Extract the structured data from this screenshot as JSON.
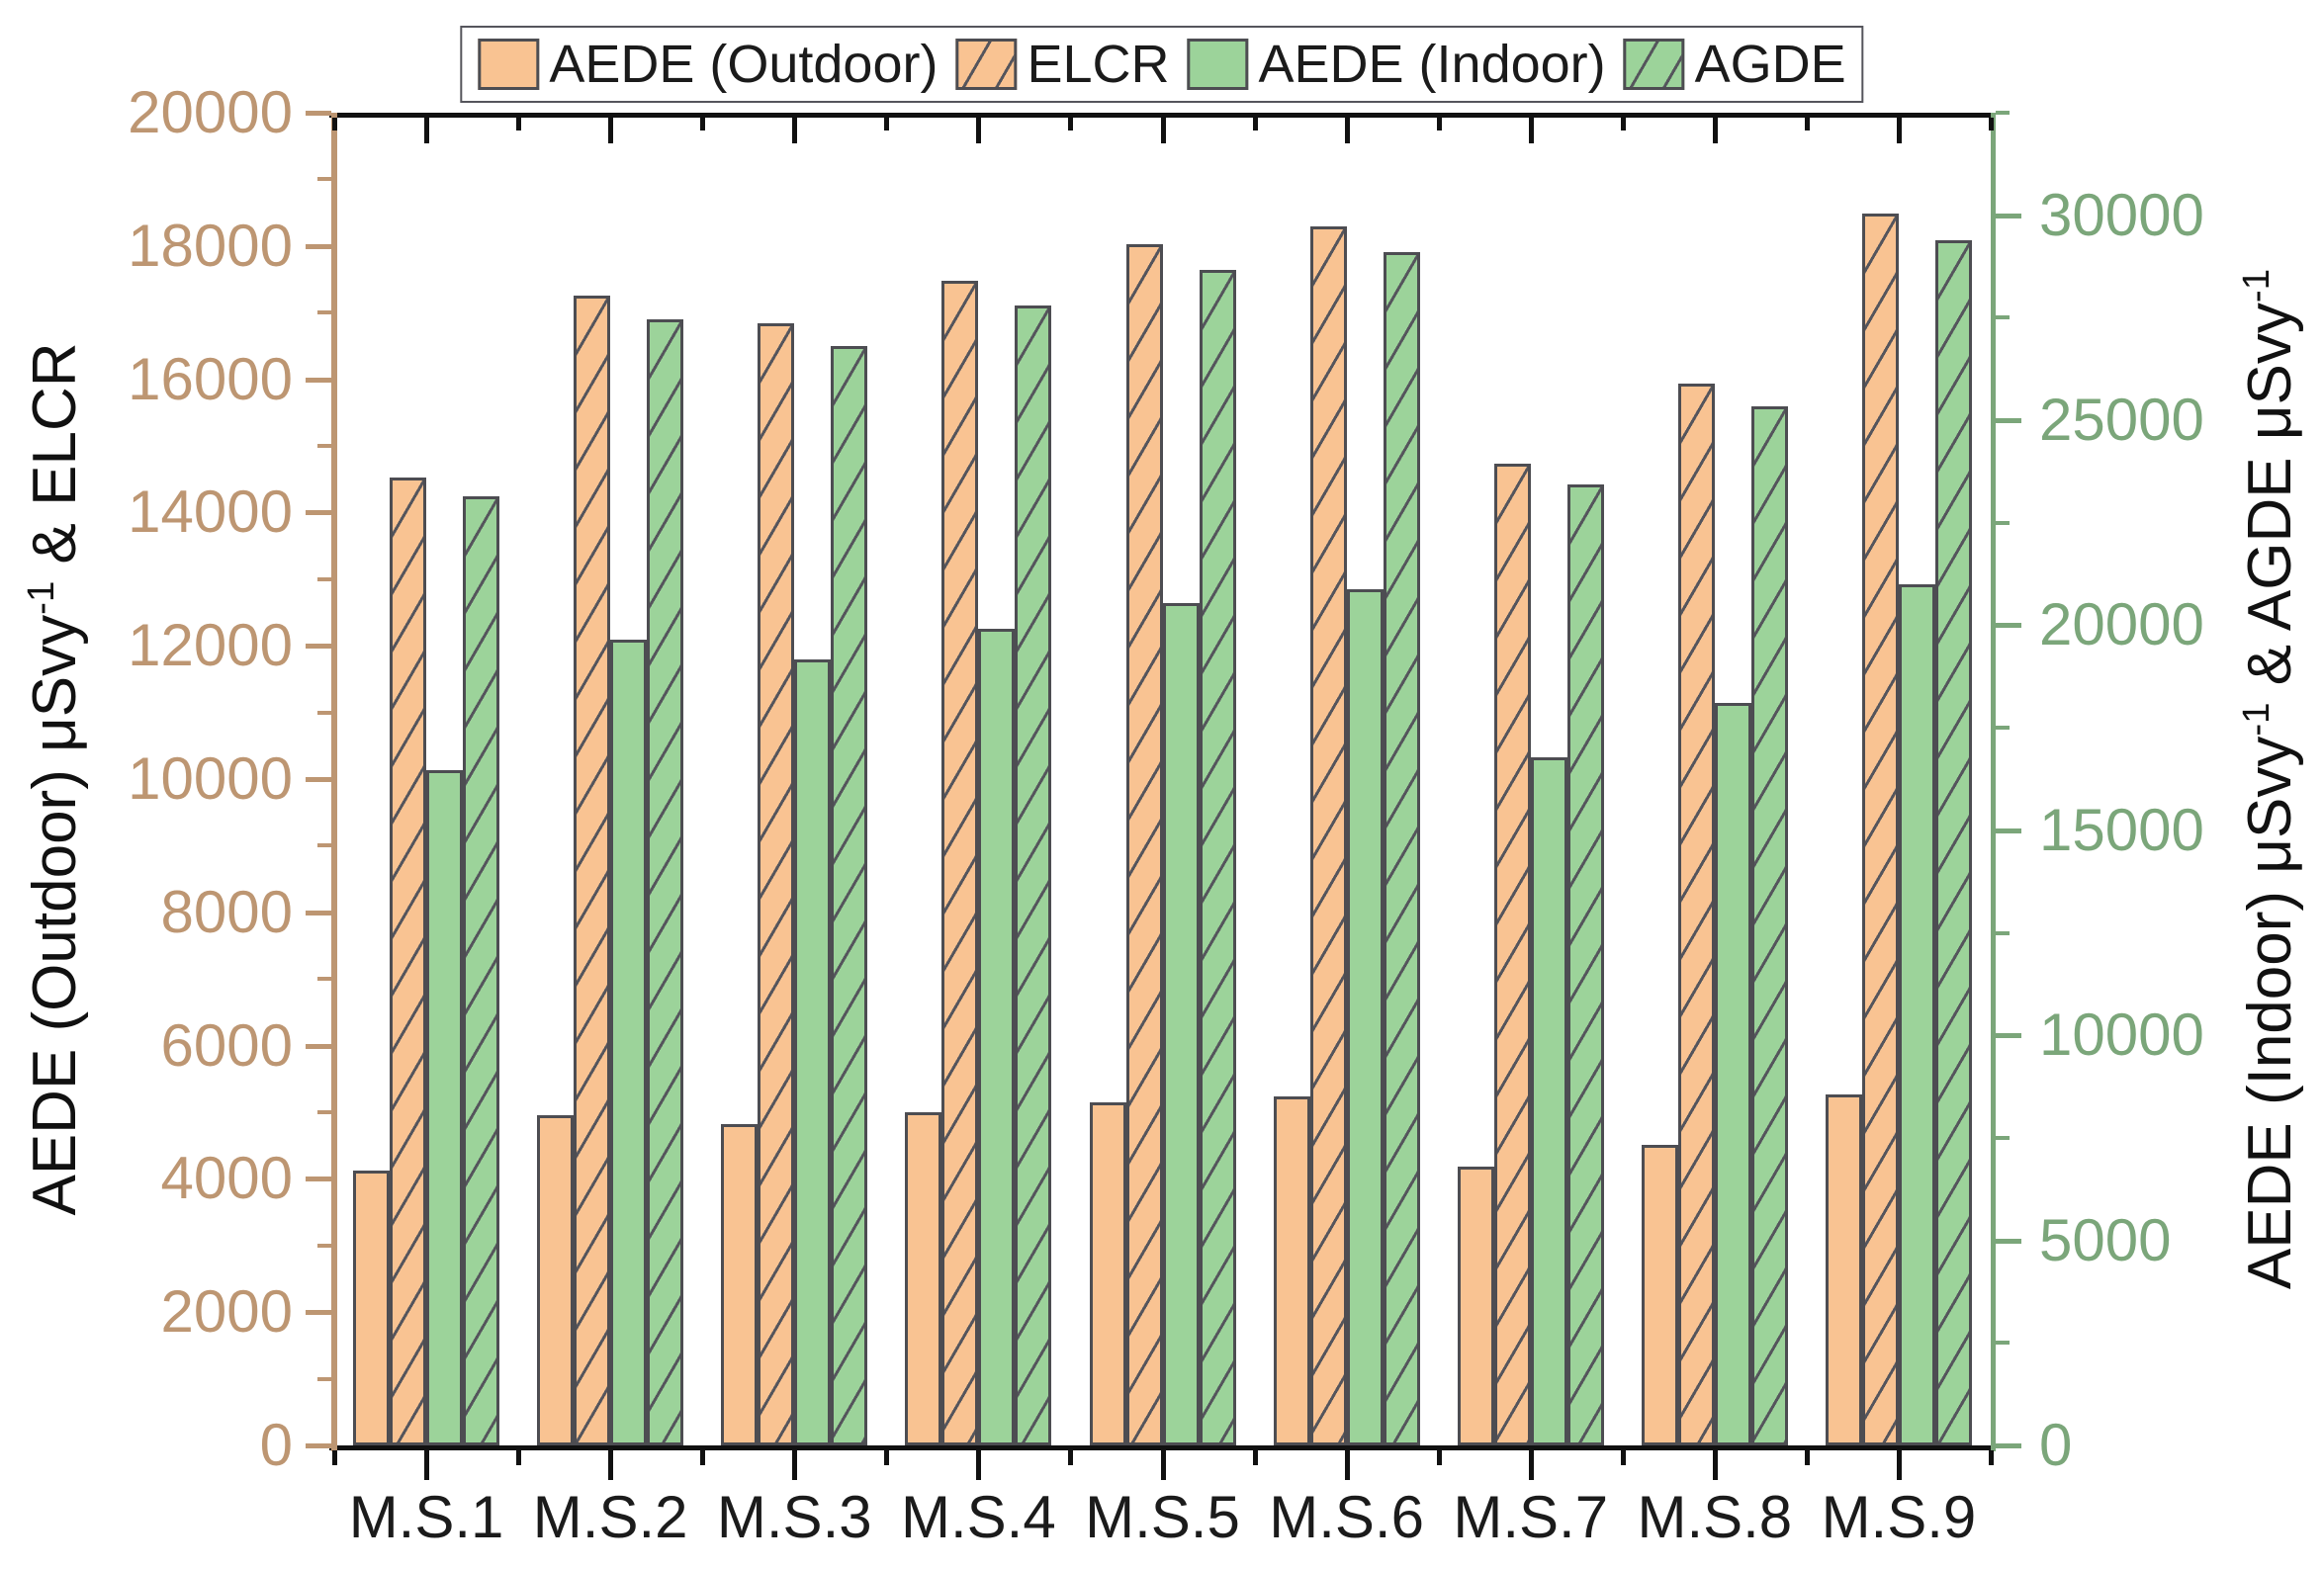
{
  "legend": {
    "items": [
      {
        "label": "AEDE (Outdoor)",
        "swatch": "orange-solid"
      },
      {
        "label": "ELCR",
        "swatch": "orange-hatched"
      },
      {
        "label": "AEDE (Indoor)",
        "swatch": "green-solid"
      },
      {
        "label": "AGDE",
        "swatch": "green-hatched"
      }
    ]
  },
  "chart_data": {
    "type": "bar",
    "title": "",
    "grid": false,
    "legend_position": "top-center",
    "categories": [
      "M.S.1",
      "M.S.2",
      "M.S.3",
      "M.S.4",
      "M.S.5",
      "M.S.6",
      "M.S.7",
      "M.S.8",
      "M.S.9"
    ],
    "series": [
      {
        "name": "AEDE (Outdoor)",
        "axis": "left",
        "swatch": "orange-solid",
        "values": [
          4130,
          4950,
          4820,
          5000,
          5150,
          5230,
          4180,
          4510,
          5270
        ]
      },
      {
        "name": "ELCR",
        "axis": "left",
        "swatch": "orange-hatched",
        "values": [
          14530,
          17250,
          16840,
          17480,
          18030,
          18290,
          14740,
          15930,
          18490
        ]
      },
      {
        "name": "AEDE (Indoor)",
        "axis": "right",
        "swatch": "green-solid",
        "values": [
          16460,
          19650,
          19170,
          19920,
          20530,
          20870,
          16780,
          18110,
          21010
        ]
      },
      {
        "name": "AGDE",
        "axis": "right",
        "swatch": "green-hatched",
        "values": [
          23140,
          27470,
          26810,
          27800,
          28660,
          29110,
          23430,
          25330,
          29400
        ]
      }
    ],
    "left_axis": {
      "title_segments": [
        {
          "text": "AEDE (Outdoor) μSvy"
        },
        {
          "text": "-1",
          "sup": true
        },
        {
          "text": " & ELCR"
        }
      ],
      "min": 0,
      "max": 20000,
      "major_step": 2000,
      "minor_step": 1000,
      "tick_labels": [
        "0",
        "2000",
        "4000",
        "6000",
        "8000",
        "10000",
        "12000",
        "14000",
        "16000",
        "18000",
        "20000"
      ],
      "color": "#bd9672"
    },
    "right_axis": {
      "title_segments": [
        {
          "text": "AEDE (Indoor) μSvy"
        },
        {
          "text": "-1",
          "sup": true
        },
        {
          "text": " & AGDE  μSvy"
        },
        {
          "text": "-1",
          "sup": true
        }
      ],
      "min": 0,
      "max": 32500,
      "major_step": 5000,
      "minor_step": 2500,
      "tick_labels": [
        "0",
        "5000",
        "10000",
        "15000",
        "20000",
        "25000",
        "30000"
      ],
      "color": "#7ba67a"
    },
    "colors": {
      "orange_fill": "#f9c392",
      "green_fill": "#9cd39a",
      "bar_edge": "#4d4d52",
      "frame_black": "#111111"
    }
  }
}
